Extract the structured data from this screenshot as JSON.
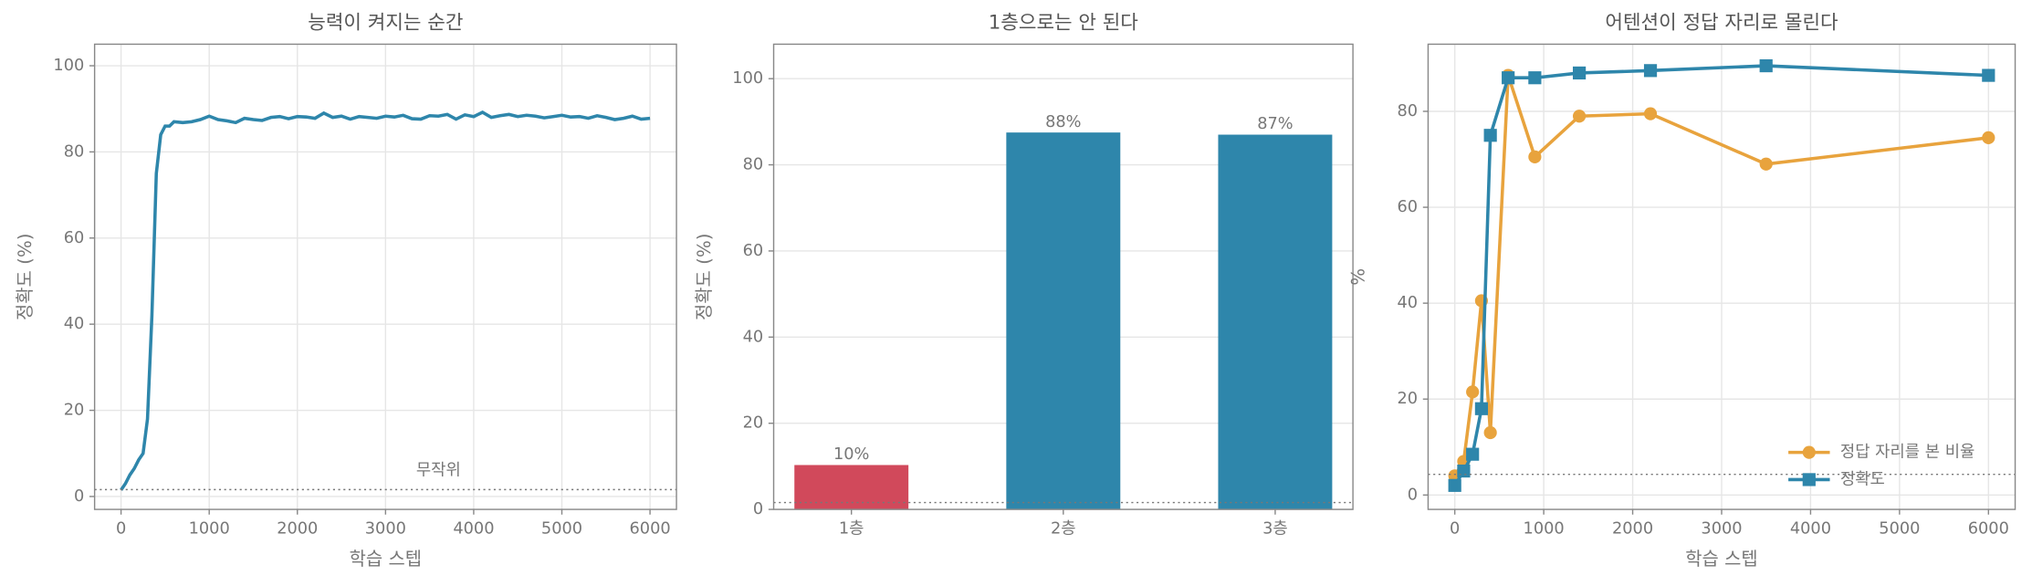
{
  "chart_data": [
    {
      "type": "line",
      "title": "능력이 켜지는 순간",
      "x_label": "학습 스텝",
      "y_label": "정확도 (%)",
      "x": [
        0,
        50,
        100,
        150,
        200,
        250,
        300,
        350,
        400,
        450,
        500,
        550,
        600,
        700,
        800,
        900,
        1000,
        1100,
        1200,
        1300,
        1400,
        1500,
        1600,
        1700,
        1800,
        1900,
        2000,
        2100,
        2200,
        2300,
        2400,
        2500,
        2600,
        2700,
        2800,
        2900,
        3000,
        3100,
        3200,
        3300,
        3400,
        3500,
        3600,
        3700,
        3800,
        3900,
        4000,
        4100,
        4200,
        4300,
        4400,
        4500,
        4600,
        4700,
        4800,
        4900,
        5000,
        5100,
        5200,
        5300,
        5400,
        5500,
        5600,
        5700,
        5800,
        5900,
        6000
      ],
      "series": [
        {
          "name": "정확도",
          "color": "#2e86ab",
          "values": [
            1.5,
            3,
            5,
            6.5,
            8.5,
            10,
            18,
            42,
            75,
            84,
            86,
            86,
            87,
            86.8,
            87,
            87.5,
            88.3,
            87.5,
            87.2,
            86.8,
            87.8,
            87.5,
            87.3,
            88,
            88.2,
            87.7,
            88.2,
            88.1,
            87.8,
            89,
            88,
            88.3,
            87.6,
            88.2,
            88,
            87.8,
            88.3,
            88.1,
            88.5,
            87.7,
            87.6,
            88.4,
            88.3,
            88.7,
            87.6,
            88.6,
            88.2,
            89.2,
            88,
            88.4,
            88.7,
            88.2,
            88.5,
            88.3,
            87.9,
            88.2,
            88.5,
            88.1,
            88.2,
            87.8,
            88.4,
            88,
            87.5,
            87.8,
            88.3,
            87.6,
            87.8
          ]
        }
      ],
      "baseline": 1.6,
      "annotation": "무작위",
      "annotation_x": 3600,
      "annotation_y": 6,
      "xlim": [
        -300,
        6300
      ],
      "ylim": [
        -3,
        105
      ],
      "xticks": [
        0,
        1000,
        2000,
        3000,
        4000,
        5000,
        6000
      ],
      "yticks": [
        0,
        20,
        40,
        60,
        80,
        100
      ],
      "grid": true,
      "markers": false
    },
    {
      "type": "bar",
      "title": "1층으로는 안 된다",
      "y_label": "정확도 (%)",
      "categories": [
        "1층",
        "2층",
        "3층"
      ],
      "values": [
        10.3,
        87.5,
        87
      ],
      "value_labels": [
        "10%",
        "88%",
        "87%"
      ],
      "colors": [
        "#d1495b",
        "#2e86ab",
        "#2e86ab"
      ],
      "baseline": 1.6,
      "ylim": [
        0,
        108
      ],
      "yticks": [
        0,
        20,
        40,
        60,
        80,
        100
      ],
      "grid": true
    },
    {
      "type": "line",
      "title": "어텐션이 정답 자리로 몰린다",
      "x_label": "학습 스텝",
      "y_label": "%",
      "x": [
        0,
        100,
        200,
        300,
        400,
        600,
        900,
        1400,
        2200,
        3500,
        6000
      ],
      "series": [
        {
          "name": "정답 자리를 본 비율",
          "color": "#e8a33d",
          "marker": "circle",
          "values": [
            4,
            7,
            21.5,
            40.5,
            13,
            87.5,
            70.5,
            79,
            79.5,
            69,
            74.5
          ]
        },
        {
          "name": "정확도",
          "color": "#2e86ab",
          "marker": "square",
          "values": [
            2,
            5,
            8.5,
            18,
            75,
            87,
            87,
            88,
            88.5,
            89.5,
            87.5
          ]
        }
      ],
      "baseline": 4.3,
      "legend": "lower right",
      "xlim": [
        -300,
        6300
      ],
      "ylim": [
        -3,
        94
      ],
      "xticks": [
        0,
        1000,
        2000,
        3000,
        4000,
        5000,
        6000
      ],
      "yticks": [
        0,
        20,
        40,
        60,
        80
      ],
      "grid": true,
      "markers": true
    }
  ]
}
